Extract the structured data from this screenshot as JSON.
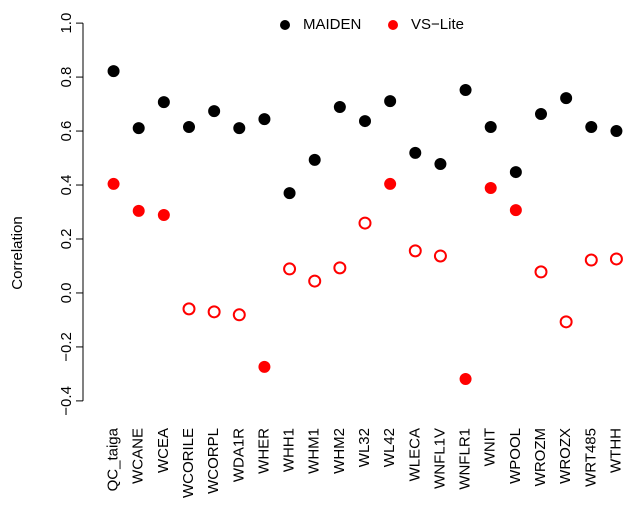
{
  "chart_data": {
    "type": "dot",
    "y_label": "Correlation",
    "categories": [
      "QC_taiga",
      "WCANE",
      "WCEA",
      "WCORILE",
      "WCORPL",
      "WDA1R",
      "WHER",
      "WHH1",
      "WHM1",
      "WHM2",
      "WL32",
      "WL42",
      "WLECA",
      "WNFL1V",
      "WNFLR1",
      "WNIT",
      "WPOOL",
      "WROZM",
      "WROZX",
      "WRT485",
      "WTHH"
    ],
    "series": [
      {
        "name": "MAIDEN",
        "color": "#000000",
        "values": [
          0.822,
          0.611,
          0.707,
          0.615,
          0.674,
          0.611,
          0.644,
          0.37,
          0.493,
          0.689,
          0.637,
          0.711,
          0.519,
          0.478,
          0.752,
          0.615,
          0.448,
          0.663,
          0.722,
          0.615,
          0.6
        ],
        "filled": [
          true,
          true,
          true,
          true,
          true,
          true,
          true,
          true,
          true,
          true,
          true,
          true,
          true,
          true,
          true,
          true,
          true,
          true,
          true,
          true,
          true
        ]
      },
      {
        "name": "VS−Lite",
        "color": "#ff0000",
        "values": [
          0.404,
          0.304,
          0.289,
          -0.059,
          -0.07,
          -0.081,
          -0.274,
          0.089,
          0.044,
          0.093,
          0.259,
          0.404,
          0.156,
          0.137,
          -0.319,
          0.389,
          0.307,
          0.078,
          -0.107,
          0.122,
          0.126
        ],
        "filled": [
          true,
          true,
          true,
          false,
          false,
          false,
          true,
          false,
          false,
          false,
          false,
          true,
          false,
          false,
          true,
          true,
          true,
          false,
          false,
          false,
          false
        ]
      }
    ],
    "ylim": [
      -0.456,
      1.056
    ],
    "yticks": [
      {
        "value": -0.4,
        "label": "−0.4"
      },
      {
        "value": -0.2,
        "label": "−0.2"
      },
      {
        "value": 0,
        "label": "0.0"
      },
      {
        "value": 0.2,
        "label": "0.2"
      },
      {
        "value": 0.4,
        "label": "0.4"
      },
      {
        "value": 0.6,
        "label": "0.6"
      },
      {
        "value": 0.8,
        "label": "0.8"
      },
      {
        "value": 1,
        "label": "1.0"
      }
    ],
    "legend": "top"
  }
}
